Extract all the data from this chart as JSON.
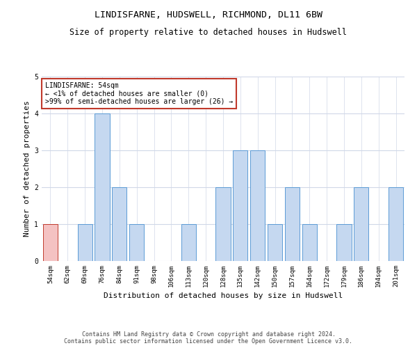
{
  "title": "LINDISFARNE, HUDSWELL, RICHMOND, DL11 6BW",
  "subtitle": "Size of property relative to detached houses in Hudswell",
  "xlabel": "Distribution of detached houses by size in Hudswell",
  "ylabel": "Number of detached properties",
  "categories": [
    "54sqm",
    "62sqm",
    "69sqm",
    "76sqm",
    "84sqm",
    "91sqm",
    "98sqm",
    "106sqm",
    "113sqm",
    "120sqm",
    "128sqm",
    "135sqm",
    "142sqm",
    "150sqm",
    "157sqm",
    "164sqm",
    "172sqm",
    "179sqm",
    "186sqm",
    "194sqm",
    "201sqm"
  ],
  "values": [
    1,
    0,
    1,
    4,
    2,
    1,
    0,
    0,
    1,
    0,
    2,
    3,
    3,
    1,
    2,
    1,
    0,
    1,
    2,
    0,
    2
  ],
  "bar_color": "#c5d8f0",
  "bar_edge_color": "#5b9bd5",
  "highlight_index": 0,
  "highlight_color": "#f4c2c2",
  "highlight_edge_color": "#c0392b",
  "ylim": [
    0,
    5
  ],
  "yticks": [
    0,
    1,
    2,
    3,
    4,
    5
  ],
  "annotation_title": "LINDISFARNE: 54sqm",
  "annotation_line1": "← <1% of detached houses are smaller (0)",
  "annotation_line2": ">99% of semi-detached houses are larger (26) →",
  "annotation_box_color": "#ffffff",
  "annotation_box_edge": "#c0392b",
  "footer_line1": "Contains HM Land Registry data © Crown copyright and database right 2024.",
  "footer_line2": "Contains public sector information licensed under the Open Government Licence v3.0.",
  "background_color": "#ffffff",
  "grid_color": "#d0d8e8",
  "title_fontsize": 9.5,
  "subtitle_fontsize": 8.5,
  "axis_label_fontsize": 8,
  "tick_fontsize": 6.5,
  "annotation_fontsize": 7,
  "footer_fontsize": 6
}
